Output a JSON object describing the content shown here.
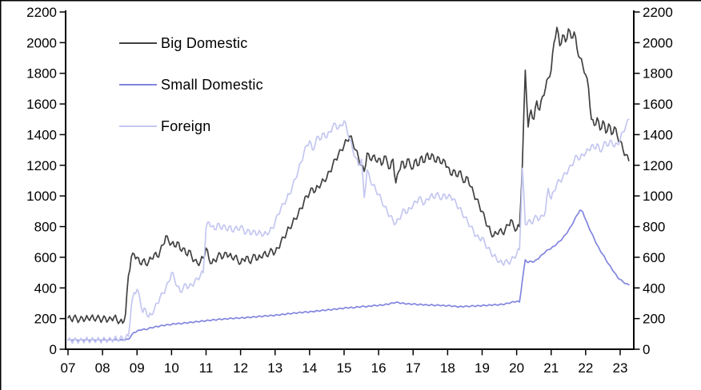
{
  "frame": {
    "background": "#ffffff",
    "border_color": "#000000",
    "axis_color": "#000000",
    "tick_label_color": "#000000"
  },
  "chart_data": {
    "type": "line",
    "title": "",
    "xlabel": "",
    "ylabel": "",
    "grid": false,
    "legend_position": "inside-top-left",
    "x_axis": {
      "tick_labels": [
        "07",
        "08",
        "09",
        "10",
        "11",
        "12",
        "13",
        "14",
        "15",
        "16",
        "17",
        "18",
        "19",
        "20",
        "21",
        "22",
        "23"
      ],
      "unit": "year",
      "range_start": 2007.0,
      "range_end": 2023.3,
      "points_frequency": "monthly"
    },
    "y_axis": {
      "min": 0,
      "max": 2200,
      "tick_step": 200,
      "ticks": [
        0,
        200,
        400,
        600,
        800,
        1000,
        1200,
        1400,
        1600,
        1800,
        2000,
        2200
      ],
      "mirrored_right_axis": true
    },
    "series": [
      {
        "name": "Big Domestic",
        "color": "#404040",
        "noise_amplitude": 16,
        "values": [
          205,
          195,
          210,
          200,
          190,
          205,
          195,
          200,
          210,
          195,
          205,
          200,
          195,
          205,
          190,
          200,
          210,
          190,
          180,
          170,
          230,
          480,
          600,
          620,
          600,
          560,
          580,
          555,
          570,
          590,
          620,
          605,
          640,
          680,
          740,
          705,
          690,
          670,
          700,
          650,
          660,
          620,
          645,
          605,
          580,
          560,
          570,
          595,
          660,
          590,
          560,
          580,
          605,
          620,
          600,
          630,
          610,
          595,
          605,
          580,
          560,
          585,
          605,
          570,
          590,
          615,
          585,
          600,
          625,
          610,
          630,
          645,
          630,
          660,
          700,
          730,
          760,
          790,
          820,
          850,
          880,
          920,
          960,
          1000,
          1020,
          1050,
          1030,
          1060,
          1080,
          1100,
          1120,
          1160,
          1200,
          1240,
          1270,
          1300,
          1330,
          1360,
          1390,
          1350,
          1300,
          1250,
          1200,
          1160,
          1280,
          1240,
          1260,
          1230,
          1245,
          1200,
          1260,
          1220,
          1180,
          1240,
          1085,
          1160,
          1225,
          1180,
          1240,
          1200,
          1180,
          1240,
          1200,
          1260,
          1220,
          1280,
          1240,
          1265,
          1220,
          1250,
          1210,
          1230,
          1190,
          1140,
          1170,
          1130,
          1160,
          1120,
          1090,
          1120,
          1060,
          1020,
          980,
          940,
          900,
          850,
          800,
          760,
          740,
          755,
          775,
          760,
          780,
          810,
          845,
          800,
          780,
          800,
          1210,
          1820,
          1450,
          1560,
          1500,
          1620,
          1560,
          1650,
          1700,
          1770,
          1820,
          2000,
          2100,
          1980,
          2050,
          2005,
          2090,
          2030,
          2070,
          1960,
          1900,
          1850,
          1790,
          1705,
          1500,
          1460,
          1510,
          1430,
          1490,
          1410,
          1470,
          1400,
          1450,
          1390,
          1360,
          1300,
          1270,
          1230
        ]
      },
      {
        "name": "Small Domestic",
        "color": "#8285df",
        "noise_amplitude": 3,
        "values": [
          62,
          61,
          63,
          62,
          60,
          62,
          61,
          60,
          62,
          61,
          60,
          62,
          60,
          61,
          60,
          62,
          61,
          60,
          59,
          60,
          62,
          65,
          90,
          110,
          118,
          125,
          130,
          128,
          135,
          140,
          145,
          148,
          152,
          155,
          158,
          160,
          162,
          165,
          168,
          166,
          170,
          172,
          174,
          176,
          178,
          180,
          182,
          184,
          186,
          188,
          190,
          192,
          194,
          196,
          197,
          198,
          200,
          201,
          202,
          203,
          204,
          205,
          207,
          208,
          210,
          211,
          213,
          214,
          216,
          217,
          219,
          220,
          222,
          224,
          226,
          228,
          230,
          232,
          234,
          236,
          238,
          240,
          242,
          243,
          244,
          246,
          248,
          250,
          252,
          254,
          256,
          258,
          260,
          262,
          264,
          266,
          268,
          270,
          272,
          270,
          274,
          276,
          278,
          280,
          278,
          282,
          284,
          285,
          286,
          288,
          290,
          294,
          298,
          302,
          306,
          304,
          300,
          298,
          296,
          294,
          295,
          293,
          291,
          292,
          290,
          288,
          289,
          287,
          286,
          288,
          285,
          284,
          285,
          283,
          281,
          279,
          277,
          278,
          280,
          279,
          281,
          283,
          282,
          284,
          285,
          287,
          286,
          288,
          290,
          289,
          291,
          293,
          296,
          300,
          305,
          310,
          312,
          308,
          450,
          584,
          565,
          575,
          570,
          585,
          600,
          620,
          635,
          650,
          658,
          672,
          688,
          705,
          725,
          748,
          775,
          805,
          840,
          875,
          907,
          895,
          845,
          800,
          760,
          720,
          680,
          645,
          618,
          585,
          555,
          528,
          500,
          472,
          455,
          440,
          428,
          420
        ]
      },
      {
        "name": "Foreign",
        "color": "#c4c7f0",
        "noise_amplitude": 14,
        "values": [
          58,
          57,
          59,
          58,
          57,
          58,
          59,
          58,
          57,
          58,
          59,
          60,
          62,
          63,
          62,
          64,
          65,
          66,
          68,
          70,
          75,
          85,
          280,
          370,
          390,
          330,
          240,
          260,
          210,
          225,
          260,
          300,
          340,
          365,
          400,
          440,
          500,
          460,
          410,
          375,
          395,
          425,
          405,
          420,
          440,
          460,
          480,
          500,
          790,
          830,
          800,
          780,
          820,
          790,
          810,
          780,
          800,
          770,
          790,
          780,
          800,
          780,
          760,
          775,
          755,
          770,
          750,
          760,
          745,
          755,
          765,
          790,
          830,
          880,
          920,
          950,
          980,
          1010,
          1060,
          1110,
          1160,
          1220,
          1280,
          1330,
          1360,
          1300,
          1340,
          1390,
          1370,
          1410,
          1380,
          1420,
          1450,
          1470,
          1440,
          1460,
          1490,
          1430,
          1370,
          1300,
          1250,
          1200,
          1240,
          990,
          1170,
          1110,
          1070,
          1040,
          1010,
          970,
          930,
          900,
          870,
          840,
          820,
          850,
          880,
          910,
          890,
          920,
          940,
          960,
          990,
          970,
          950,
          980,
          1000,
          990,
          1010,
          1000,
          980,
          1010,
          990,
          1000,
          980,
          950,
          920,
          890,
          860,
          830,
          800,
          770,
          740,
          720,
          730,
          690,
          660,
          630,
          610,
          590,
          570,
          560,
          575,
          565,
          580,
          600,
          620,
          650,
          1180,
          815,
          835,
          825,
          850,
          865,
          850,
          870,
          900,
          1050,
          980,
          1030,
          1080,
          1100,
          1120,
          1150,
          1170,
          1200,
          1230,
          1260,
          1240,
          1270,
          1280,
          1300,
          1330,
          1310,
          1340,
          1290,
          1320,
          1350,
          1330,
          1360,
          1320,
          1340,
          1370,
          1420,
          1460,
          1500
        ]
      }
    ]
  }
}
